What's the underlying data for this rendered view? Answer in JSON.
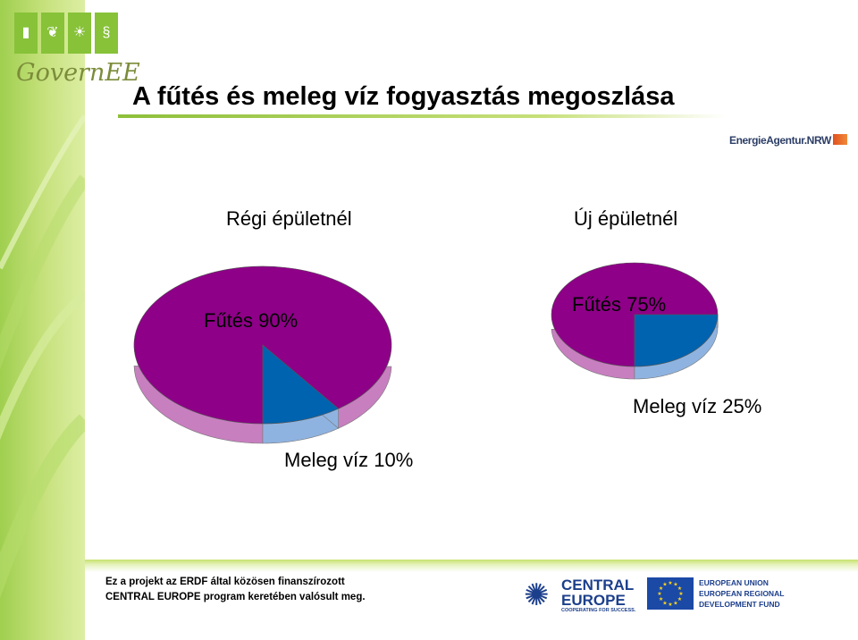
{
  "slide": {
    "title": "A fűtés és meleg víz fogyasztás megoszlása"
  },
  "logos": {
    "governee": "GovernEE",
    "energieagentur": "EnergieAgentur.NRW",
    "central_europe_name": "CENTRAL EUROPE",
    "central_europe_tagline": "COOPERATING FOR SUCCESS.",
    "eu_lines": [
      "EUROPEAN UNION",
      "EUROPEAN REGIONAL",
      "DEVELOPMENT FUND"
    ]
  },
  "footer": {
    "line1": "Ez a projekt az ERDF által közösen finanszírozott",
    "line2": "CENTRAL EUROPE  program keretében valósult meg."
  },
  "colors": {
    "heating": "#8e0087",
    "heating_side": "#c77fbf",
    "hot_water": "#0063b0",
    "hot_water_side": "#8fb3e0",
    "accent_green": "#8dbf3a"
  },
  "chart_data": [
    {
      "type": "pie",
      "title": "Régi épületnél",
      "slices": [
        {
          "label": "Fűtés 90%",
          "value": 90,
          "color": "#8e0087"
        },
        {
          "label": "Meleg víz 10%",
          "value": 10,
          "color": "#0063b0"
        }
      ]
    },
    {
      "type": "pie",
      "title": "Új épületnél",
      "slices": [
        {
          "label": "Fűtés 75%",
          "value": 75,
          "color": "#8e0087"
        },
        {
          "label": "Meleg víz 25%",
          "value": 25,
          "color": "#0063b0"
        }
      ]
    }
  ]
}
